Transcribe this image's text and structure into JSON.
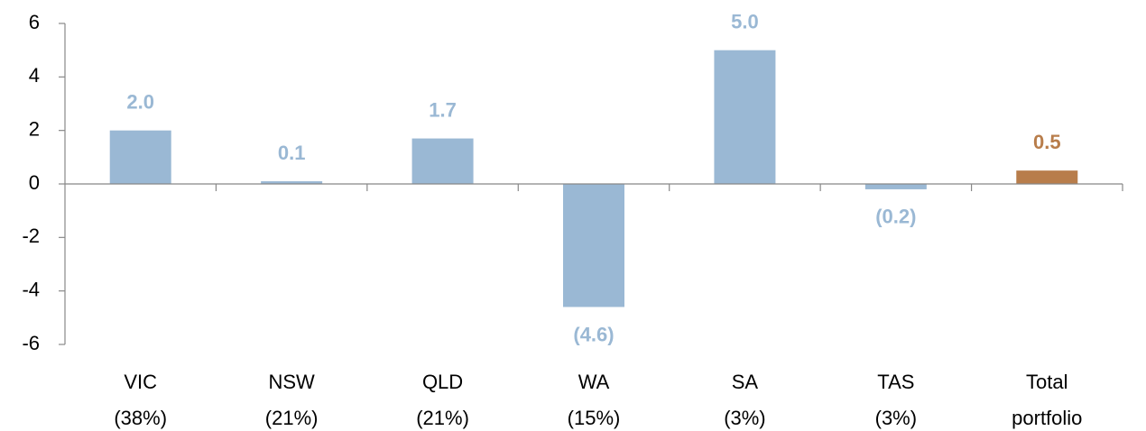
{
  "chart_data": {
    "type": "bar",
    "categories": [
      "VIC\n(38%)",
      "NSW\n(21%)",
      "QLD\n(21%)",
      "WA\n(15%)",
      "SA\n(3%)",
      "TAS\n(3%)",
      "Total\nportfolio"
    ],
    "values": [
      2.0,
      0.1,
      1.7,
      -4.6,
      5.0,
      -0.2,
      0.5
    ],
    "value_labels": [
      "2.0",
      "0.1",
      "1.7",
      "(4.6)",
      "5.0",
      "(0.2)",
      "0.5"
    ],
    "colors": [
      "#9ab8d4",
      "#9ab8d4",
      "#9ab8d4",
      "#9ab8d4",
      "#9ab8d4",
      "#9ab8d4",
      "#b87d4b"
    ],
    "ylim": [
      -6,
      6
    ],
    "yticks": [
      -6,
      -4,
      -2,
      0,
      2,
      4,
      6
    ],
    "grid": false
  }
}
